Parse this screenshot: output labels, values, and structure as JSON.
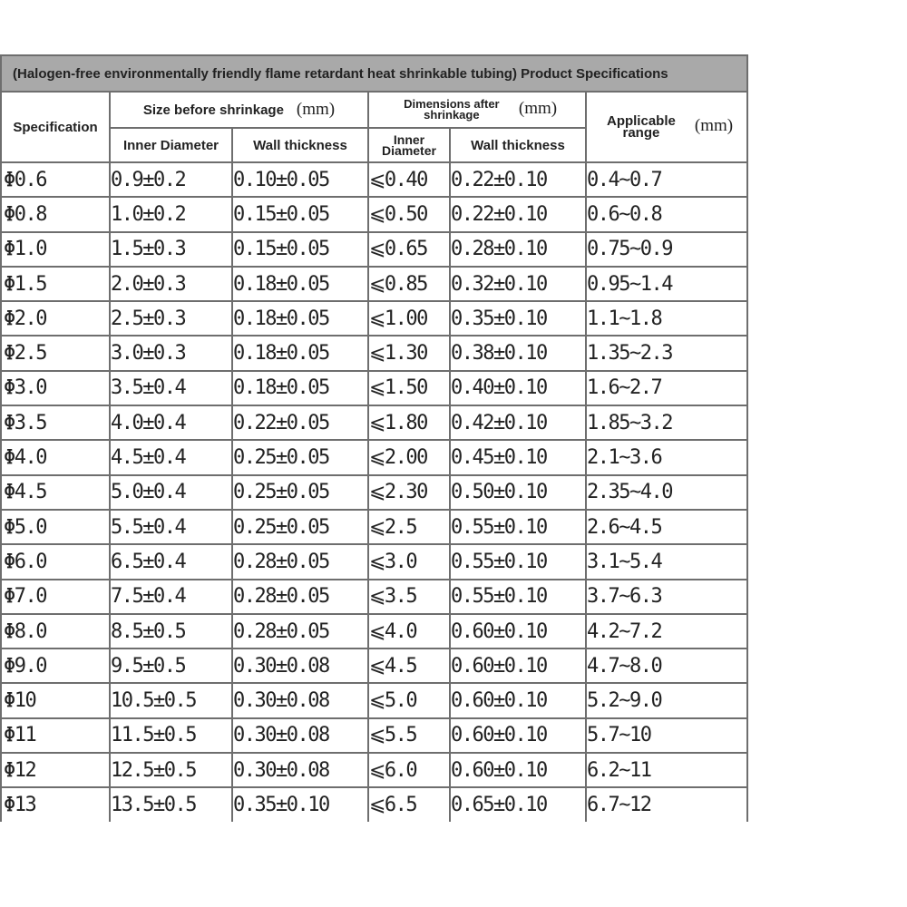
{
  "title": "(Halogen-free environmentally friendly flame retardant heat shrinkable tubing) Product Specifications",
  "headers": {
    "specification": "Specification",
    "before": "Size before shrinkage",
    "after": "Dimensions after shrinkage",
    "range": "Applicable range",
    "unit": "(mm)",
    "inner_diameter": "Inner Diameter",
    "wall_thickness": "Wall thickness"
  },
  "rows": [
    [
      "Φ0.6",
      "0.9±0.2",
      "0.10±0.05",
      "⩽0.40",
      "0.22±0.10",
      "0.4~0.7"
    ],
    [
      "Φ0.8",
      "1.0±0.2",
      "0.15±0.05",
      "⩽0.50",
      "0.22±0.10",
      "0.6~0.8"
    ],
    [
      "Φ1.0",
      "1.5±0.3",
      "0.15±0.05",
      "⩽0.65",
      "0.28±0.10",
      "0.75~0.9"
    ],
    [
      "Φ1.5",
      "2.0±0.3",
      "0.18±0.05",
      "⩽0.85",
      "0.32±0.10",
      "0.95~1.4"
    ],
    [
      "Φ2.0",
      "2.5±0.3",
      "0.18±0.05",
      "⩽1.00",
      "0.35±0.10",
      "1.1~1.8"
    ],
    [
      "Φ2.5",
      "3.0±0.3",
      "0.18±0.05",
      "⩽1.30",
      "0.38±0.10",
      "1.35~2.3"
    ],
    [
      "Φ3.0",
      "3.5±0.4",
      "0.18±0.05",
      "⩽1.50",
      "0.40±0.10",
      "1.6~2.7"
    ],
    [
      "Φ3.5",
      "4.0±0.4",
      "0.22±0.05",
      "⩽1.80",
      "0.42±0.10",
      "1.85~3.2"
    ],
    [
      "Φ4.0",
      "4.5±0.4",
      "0.25±0.05",
      "⩽2.00",
      "0.45±0.10",
      "2.1~3.6"
    ],
    [
      "Φ4.5",
      "5.0±0.4",
      "0.25±0.05",
      "⩽2.30",
      "0.50±0.10",
      "2.35~4.0"
    ],
    [
      "Φ5.0",
      "5.5±0.4",
      "0.25±0.05",
      "⩽2.5",
      "0.55±0.10",
      "2.6~4.5"
    ],
    [
      "Φ6.0",
      "6.5±0.4",
      "0.28±0.05",
      "⩽3.0",
      "0.55±0.10",
      "3.1~5.4"
    ],
    [
      "Φ7.0",
      "7.5±0.4",
      "0.28±0.05",
      "⩽3.5",
      "0.55±0.10",
      "3.7~6.3"
    ],
    [
      "Φ8.0",
      "8.5±0.5",
      "0.28±0.05",
      "⩽4.0",
      "0.60±0.10",
      "4.2~7.2"
    ],
    [
      "Φ9.0",
      "9.5±0.5",
      "0.30±0.08",
      "⩽4.5",
      "0.60±0.10",
      "4.7~8.0"
    ],
    [
      "Φ10",
      "10.5±0.5",
      "0.30±0.08",
      "⩽5.0",
      "0.60±0.10",
      "5.2~9.0"
    ],
    [
      "Φ11",
      "11.5±0.5",
      "0.30±0.08",
      "⩽5.5",
      "0.60±0.10",
      "5.7~10"
    ],
    [
      "Φ12",
      "12.5±0.5",
      "0.30±0.08",
      "⩽6.0",
      "0.60±0.10",
      "6.2~11"
    ],
    [
      "Φ13",
      "13.5±0.5",
      "0.35±0.10",
      "⩽6.5",
      "0.65±0.10",
      "6.7~12"
    ]
  ]
}
